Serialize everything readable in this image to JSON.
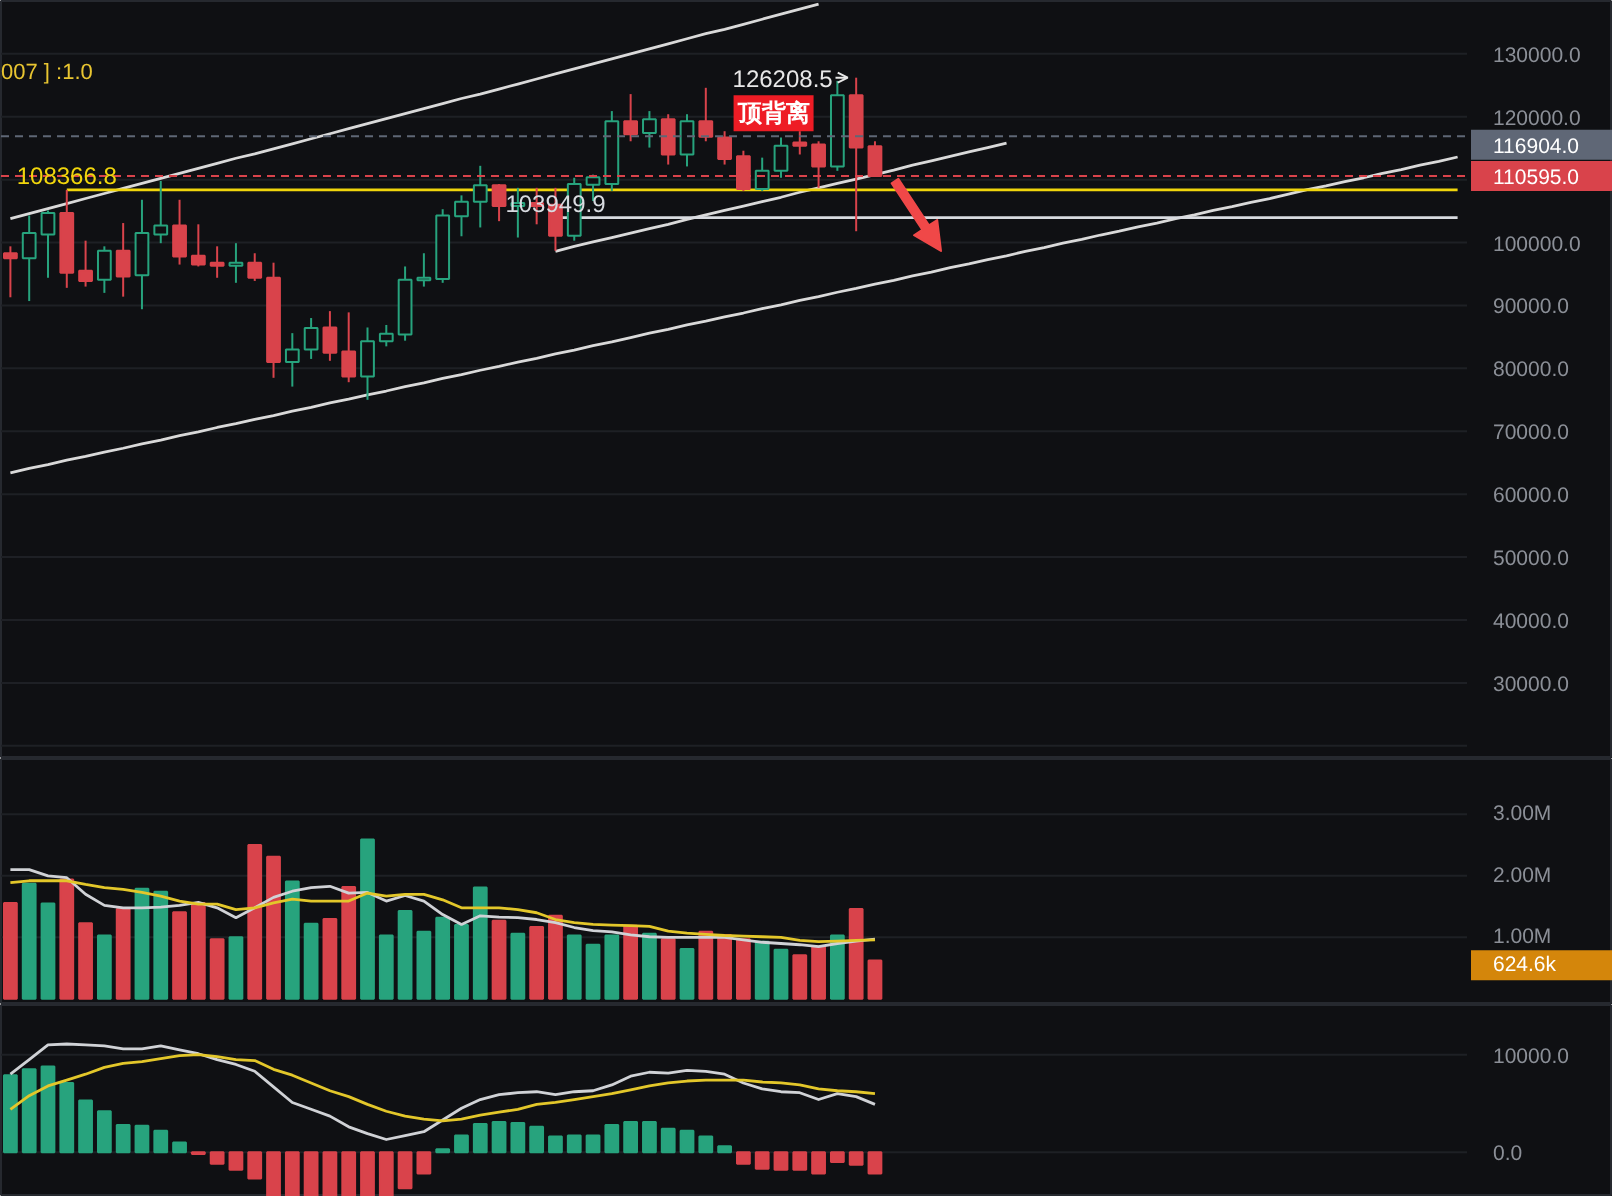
{
  "chart_data": [
    {
      "type": "candlestick",
      "categories": [
        null,
        null,
        null,
        null,
        null,
        null,
        null,
        null,
        null,
        null,
        null,
        null,
        null,
        null,
        null,
        null,
        null,
        null,
        null,
        null,
        null,
        null,
        null,
        null,
        null,
        null,
        null,
        null,
        null,
        null,
        null,
        null,
        null,
        null,
        null,
        null,
        null,
        null,
        null,
        null,
        null,
        null,
        null,
        null,
        null,
        null,
        null,
        null,
        null,
        null,
        null,
        null,
        null,
        null,
        null,
        null,
        null,
        null,
        null,
        null,
        null,
        null,
        null,
        null,
        null,
        null,
        null,
        null,
        null,
        null,
        null,
        null,
        null,
        null,
        null,
        null,
        null,
        null
      ],
      "ohlc": [
        [
          98300,
          99400,
          91300,
          97500
        ],
        [
          97500,
          104300,
          90700,
          101500
        ],
        [
          101300,
          105100,
          94400,
          104700
        ],
        [
          104700,
          108366.8,
          92800,
          95200
        ],
        [
          95500,
          100300,
          93000,
          93900
        ],
        [
          94100,
          99400,
          92000,
          98700
        ],
        [
          98700,
          103100,
          91400,
          94600
        ],
        [
          94800,
          106800,
          89400,
          101500
        ],
        [
          101300,
          109800,
          99900,
          102700
        ],
        [
          102700,
          106800,
          96500,
          97800
        ],
        [
          97900,
          102900,
          96200,
          96500
        ],
        [
          96800,
          99400,
          94400,
          96300
        ],
        [
          96300,
          99900,
          93600,
          96800
        ],
        [
          96800,
          98300,
          93900,
          94400
        ],
        [
          94400,
          96800,
          78500,
          81000
        ],
        [
          81000,
          85600,
          77100,
          83000
        ],
        [
          83000,
          88000,
          81500,
          86400
        ],
        [
          86500,
          89100,
          81200,
          82500
        ],
        [
          82700,
          88900,
          77800,
          78700
        ],
        [
          78700,
          86500,
          75000,
          84300
        ],
        [
          84300,
          86900,
          83500,
          85500
        ],
        [
          85400,
          96200,
          84400,
          94100
        ],
        [
          94000,
          98300,
          93000,
          94400
        ],
        [
          94200,
          105300,
          93600,
          104300
        ],
        [
          104200,
          107500,
          101000,
          106500
        ],
        [
          106500,
          112200,
          102400,
          109100
        ],
        [
          109100,
          109300,
          103400,
          105800
        ],
        [
          105800,
          108700,
          100800,
          106300
        ],
        [
          106300,
          108700,
          102900,
          105800
        ],
        [
          106000,
          108700,
          98700,
          101100
        ],
        [
          101100,
          110300,
          100300,
          109300
        ],
        [
          109200,
          110800,
          106600,
          110400
        ],
        [
          109300,
          120900,
          108200,
          119300
        ],
        [
          119300,
          123600,
          116100,
          117200
        ],
        [
          117400,
          120900,
          115100,
          119600
        ],
        [
          119600,
          120400,
          112400,
          114000
        ],
        [
          114000,
          120400,
          112100,
          119300
        ],
        [
          119300,
          124600,
          116100,
          116800
        ],
        [
          116700,
          117700,
          112400,
          113300
        ],
        [
          113700,
          114600,
          108200,
          108500
        ],
        [
          108500,
          113500,
          108200,
          111400
        ],
        [
          111400,
          116700,
          110300,
          115400
        ],
        [
          115900,
          117700,
          114000,
          115400
        ],
        [
          115600,
          116100,
          108700,
          112100
        ],
        [
          112100,
          125700,
          111400,
          123400
        ],
        [
          123400,
          126208.5,
          101800,
          115100
        ],
        [
          115300,
          116100,
          110500,
          110595
        ],
        null,
        null,
        null,
        null,
        null,
        null,
        null,
        null,
        null,
        null,
        null,
        null,
        null,
        null,
        null,
        null,
        null,
        null,
        null,
        null,
        null,
        null,
        null,
        null,
        null,
        null,
        null,
        null,
        null,
        null,
        null
      ],
      "colors": [
        "#d9434b",
        "#27a37d",
        "#27a37d",
        "#d9434b",
        "#d9434b",
        "#27a37d",
        "#d9434b",
        "#27a37d",
        "#27a37d",
        "#d9434b",
        "#d9434b",
        "#d9434b",
        "#27a37d",
        "#d9434b",
        "#d9434b",
        "#27a37d",
        "#27a37d",
        "#d9434b",
        "#d9434b",
        "#27a37d",
        "#27a37d",
        "#27a37d",
        "#27a37d",
        "#27a37d",
        "#27a37d",
        "#27a37d",
        "#d9434b",
        "#27a37d",
        "#d9434b",
        "#d9434b",
        "#27a37d",
        "#27a37d",
        "#27a37d",
        "#d9434b",
        "#27a37d",
        "#d9434b",
        "#27a37d",
        "#d9434b",
        "#d9434b",
        "#d9434b",
        "#27a37d",
        "#27a37d",
        "#d9434b",
        "#d9434b",
        "#27a37d",
        "#d9434b",
        "#d9434b",
        null,
        null,
        null,
        null,
        null,
        null,
        null,
        null,
        null,
        null,
        null,
        null,
        null,
        null,
        null,
        null,
        null,
        null,
        null,
        null,
        null,
        null,
        null,
        null,
        null,
        null,
        null,
        null,
        null,
        null,
        null
      ],
      "value_labels": [
        null,
        null,
        null,
        null,
        null,
        null,
        null,
        null,
        null,
        null,
        null,
        null,
        null,
        null,
        null,
        null,
        null,
        null,
        null,
        null,
        null,
        null,
        null,
        null,
        null,
        null,
        null,
        null,
        null,
        null,
        null,
        null,
        null,
        null,
        null,
        null,
        null,
        null,
        null,
        null,
        null,
        null,
        null,
        null,
        null,
        "126208.5",
        null,
        null,
        null,
        null,
        null,
        null,
        null,
        null,
        null,
        null,
        null,
        null,
        null,
        null,
        null,
        null,
        null,
        null,
        null,
        null,
        null,
        null,
        null,
        null,
        null,
        null,
        null,
        null,
        null,
        null,
        null,
        null
      ],
      "series": [
        {
          "type": "line",
          "color": "#d9d9d9",
          "values": [
            103800,
            104600,
            105400,
            106200,
            107000,
            107800,
            108600,
            109400,
            110200,
            111000,
            111800,
            112600,
            113400,
            114100,
            114900,
            115700,
            116500,
            117300,
            118100,
            118900,
            119700,
            120500,
            121300,
            122100,
            122900,
            123600,
            124400,
            125200,
            126000,
            126800,
            127600,
            128400,
            129200,
            130000,
            130800,
            131600,
            132400,
            133200,
            133900,
            134700,
            135500,
            136300,
            137100,
            137900,
            null,
            null,
            null,
            null,
            null,
            null,
            null,
            null,
            null,
            null,
            null,
            null,
            null,
            null,
            null,
            null,
            null,
            null,
            null,
            null,
            null,
            null,
            null,
            null,
            null,
            null,
            null,
            null,
            null,
            null,
            null,
            null,
            null,
            null
          ]
        },
        {
          "type": "line",
          "color": "#d9d9d9",
          "values": [
            63400,
            64100,
            64700,
            65400,
            66000,
            66700,
            67300,
            68000,
            68600,
            69300,
            69900,
            70600,
            71200,
            71900,
            72500,
            73200,
            73800,
            74500,
            75100,
            75800,
            76400,
            77100,
            77700,
            78400,
            79000,
            79700,
            80300,
            81000,
            81600,
            82300,
            82900,
            83600,
            84200,
            84900,
            85600,
            86200,
            86900,
            87500,
            88200,
            88800,
            89500,
            90100,
            90800,
            91400,
            92100,
            92700,
            93400,
            94000,
            94700,
            95300,
            96000,
            96600,
            97300,
            97900,
            98600,
            99200,
            99900,
            100500,
            101200,
            101800,
            102500,
            103100,
            103800,
            104400,
            105100,
            105700,
            106400,
            107000,
            107700,
            108400,
            109000,
            109700,
            110300,
            111000,
            111600,
            112300,
            112900,
            113600
          ]
        },
        {
          "type": "line",
          "color": "#d9d9d9",
          "values": [
            null,
            null,
            null,
            null,
            null,
            null,
            null,
            null,
            null,
            null,
            null,
            null,
            null,
            null,
            null,
            null,
            null,
            null,
            null,
            null,
            null,
            null,
            null,
            null,
            null,
            null,
            null,
            null,
            null,
            98600,
            99400,
            100100,
            100800,
            101500,
            102200,
            102900,
            103700,
            104400,
            105100,
            105800,
            106500,
            107200,
            108000,
            108700,
            109400,
            110100,
            110800,
            111500,
            112300,
            113000,
            113700,
            114400,
            115100,
            115800,
            null,
            null,
            null,
            null,
            null,
            null,
            null,
            null,
            null,
            null,
            null,
            null,
            null,
            null,
            null,
            null,
            null,
            null,
            null,
            null,
            null,
            null,
            null,
            null
          ]
        },
        {
          "type": "line",
          "color": "#f0d50c",
          "values": [
            null,
            null,
            null,
            108366.8,
            108366.8,
            108366.8,
            108366.8,
            108366.8,
            108366.8,
            108366.8,
            108366.8,
            108366.8,
            108366.8,
            108366.8,
            108366.8,
            108366.8,
            108366.8,
            108366.8,
            108366.8,
            108366.8,
            108366.8,
            108366.8,
            108366.8,
            108366.8,
            108366.8,
            108366.8,
            108366.8,
            108366.8,
            108366.8,
            108366.8,
            108366.8,
            108366.8,
            108366.8,
            108366.8,
            108366.8,
            108366.8,
            108366.8,
            108366.8,
            108366.8,
            108366.8,
            108366.8,
            108366.8,
            108366.8,
            108366.8,
            108366.8,
            108366.8,
            108366.8,
            108366.8,
            108366.8,
            108366.8,
            108366.8,
            108366.8,
            108366.8,
            108366.8,
            108366.8,
            108366.8,
            108366.8,
            108366.8,
            108366.8,
            108366.8,
            108366.8,
            108366.8,
            108366.8,
            108366.8,
            108366.8,
            108366.8,
            108366.8,
            108366.8,
            108366.8,
            108366.8,
            108366.8,
            108366.8,
            108366.8,
            108366.8,
            108366.8,
            108366.8,
            108366.8,
            108366.8
          ],
          "value_labels": [
            null,
            null,
            null,
            "108366.8",
            null,
            null,
            null,
            null,
            null,
            null,
            null,
            null,
            null,
            null,
            null,
            null,
            null,
            null,
            null,
            null,
            null,
            null,
            null,
            null,
            null,
            null,
            null,
            null,
            null,
            null,
            null,
            null,
            null,
            null,
            null,
            null,
            null,
            null,
            null,
            null,
            null,
            null,
            null,
            null,
            null,
            null,
            null,
            null,
            null,
            null,
            null,
            null,
            null,
            null,
            null,
            null,
            null,
            null,
            null,
            null,
            null,
            null,
            null,
            null,
            null,
            null,
            null,
            null,
            null,
            null,
            null,
            null,
            null,
            null,
            null,
            null,
            null,
            null
          ]
        },
        {
          "type": "line",
          "color": "#d8dbe0",
          "values": [
            null,
            null,
            null,
            null,
            null,
            null,
            null,
            null,
            null,
            null,
            null,
            null,
            null,
            null,
            null,
            null,
            null,
            null,
            null,
            null,
            null,
            null,
            null,
            null,
            null,
            null,
            null,
            null,
            null,
            103949.9,
            103949.9,
            103949.9,
            103949.9,
            103949.9,
            103949.9,
            103949.9,
            103949.9,
            103949.9,
            103949.9,
            103949.9,
            103949.9,
            103949.9,
            103949.9,
            103949.9,
            103949.9,
            103949.9,
            103949.9,
            103949.9,
            103949.9,
            103949.9,
            103949.9,
            103949.9,
            103949.9,
            103949.9,
            103949.9,
            103949.9,
            103949.9,
            103949.9,
            103949.9,
            103949.9,
            103949.9,
            103949.9,
            103949.9,
            103949.9,
            103949.9,
            103949.9,
            103949.9,
            103949.9,
            103949.9,
            103949.9,
            103949.9,
            103949.9,
            103949.9,
            103949.9,
            103949.9,
            103949.9,
            103949.9,
            103949.9
          ],
          "value_labels": [
            null,
            null,
            null,
            null,
            null,
            null,
            null,
            null,
            null,
            null,
            null,
            null,
            null,
            null,
            null,
            null,
            null,
            null,
            null,
            null,
            null,
            null,
            null,
            null,
            null,
            null,
            null,
            null,
            null,
            "103949.9",
            null,
            null,
            null,
            null,
            null,
            null,
            null,
            null,
            null,
            null,
            null,
            null,
            null,
            null,
            null,
            null,
            null,
            null,
            null,
            null,
            null,
            null,
            null,
            null,
            null,
            null,
            null,
            null,
            null,
            null,
            null,
            null,
            null,
            null,
            null,
            null,
            null,
            null,
            null,
            null,
            null,
            null,
            null,
            null,
            null,
            null,
            null,
            null
          ]
        }
      ],
      "ref_lines": [
        {
          "axis": "y",
          "value": 116904,
          "label": "116904.0",
          "color": "#5f6776",
          "line_style": "dashed"
        },
        {
          "axis": "y",
          "value": 110595,
          "label": "110595.0",
          "color": "#d9434b",
          "line_style": "dashed"
        }
      ],
      "annotations": [
        "007 ] :1.0",
        "顶背离"
      ],
      "ylim": [
        17900,
        138400
      ],
      "yticks": [
        {
          "value": 20000,
          "label": null
        },
        {
          "value": 30000,
          "label": "30000.0"
        },
        {
          "value": 40000,
          "label": "40000.0"
        },
        {
          "value": 50000,
          "label": "50000.0"
        },
        {
          "value": 60000,
          "label": "60000.0"
        },
        {
          "value": 70000,
          "label": "70000.0"
        },
        {
          "value": 80000,
          "label": "80000.0"
        },
        {
          "value": 90000,
          "label": "90000.0"
        },
        {
          "value": 100000,
          "label": "100000.0"
        },
        {
          "value": 110000,
          "label": null
        },
        {
          "value": 120000,
          "label": "120000.0"
        },
        {
          "value": 130000,
          "label": "130000.0"
        }
      ],
      "grid": "y",
      "tick_labels": "y"
    },
    {
      "type": "bar",
      "categories": [
        null,
        null,
        null,
        null,
        null,
        null,
        null,
        null,
        null,
        null,
        null,
        null,
        null,
        null,
        null,
        null,
        null,
        null,
        null,
        null,
        null,
        null,
        null,
        null,
        null,
        null,
        null,
        null,
        null,
        null,
        null,
        null,
        null,
        null,
        null,
        null,
        null,
        null,
        null,
        null,
        null,
        null,
        null,
        null,
        null,
        null,
        null,
        null,
        null,
        null,
        null,
        null,
        null,
        null,
        null,
        null,
        null,
        null,
        null,
        null,
        null,
        null,
        null,
        null,
        null,
        null,
        null,
        null,
        null,
        null,
        null,
        null,
        null,
        null,
        null,
        null,
        null,
        null
      ],
      "series": [
        {
          "type": "bar",
          "values": [
            1560000,
            1870000,
            1550000,
            1940000,
            1230000,
            1030000,
            1460000,
            1790000,
            1740000,
            1410000,
            1560000,
            970000,
            1000000,
            2500000,
            2310000,
            1910000,
            1220000,
            1300000,
            1820000,
            2590000,
            1030000,
            1430000,
            1090000,
            1320000,
            1200000,
            1810000,
            1270000,
            1060000,
            1170000,
            1350000,
            1030000,
            880000,
            1030000,
            1190000,
            1060000,
            970000,
            810000,
            1090000,
            1040000,
            970000,
            930000,
            800000,
            710000,
            850000,
            1030000,
            1460000,
            624600,
            null,
            null,
            null,
            null,
            null,
            null,
            null,
            null,
            null,
            null,
            null,
            null,
            null,
            null,
            null,
            null,
            null,
            null,
            null,
            null,
            null,
            null,
            null,
            null,
            null,
            null,
            null,
            null,
            null,
            null,
            null
          ],
          "colors": [
            "#d9434b",
            "#27a37d",
            "#27a37d",
            "#d9434b",
            "#d9434b",
            "#27a37d",
            "#d9434b",
            "#27a37d",
            "#27a37d",
            "#d9434b",
            "#d9434b",
            "#d9434b",
            "#27a37d",
            "#d9434b",
            "#d9434b",
            "#27a37d",
            "#27a37d",
            "#d9434b",
            "#d9434b",
            "#27a37d",
            "#27a37d",
            "#27a37d",
            "#27a37d",
            "#27a37d",
            "#27a37d",
            "#27a37d",
            "#d9434b",
            "#27a37d",
            "#d9434b",
            "#d9434b",
            "#27a37d",
            "#27a37d",
            "#27a37d",
            "#d9434b",
            "#27a37d",
            "#d9434b",
            "#27a37d",
            "#d9434b",
            "#d9434b",
            "#d9434b",
            "#27a37d",
            "#27a37d",
            "#d9434b",
            "#d9434b",
            "#27a37d",
            "#d9434b",
            "#d9434b",
            null,
            null,
            null,
            null,
            null,
            null,
            null,
            null,
            null,
            null,
            null,
            null,
            null,
            null,
            null,
            null,
            null,
            null,
            null,
            null,
            null,
            null,
            null,
            null,
            null,
            null,
            null,
            null,
            null,
            null,
            null
          ]
        },
        {
          "type": "line",
          "color": "#d0d2d6",
          "values": [
            2100000,
            2100000,
            2000000,
            1970000,
            1700000,
            1520000,
            1480000,
            1480000,
            1490000,
            1520000,
            1570000,
            1480000,
            1320000,
            1480000,
            1650000,
            1750000,
            1810000,
            1830000,
            1720000,
            1730000,
            1590000,
            1680000,
            1590000,
            1370000,
            1210000,
            1350000,
            1330000,
            1320000,
            1290000,
            1240000,
            1160000,
            1110000,
            1090000,
            1040000,
            1010000,
            1000000,
            1000000,
            1000000,
            1000000,
            960000,
            920000,
            900000,
            880000,
            850000,
            900000,
            940000,
            970000,
            null,
            null,
            null,
            null,
            null,
            null,
            null,
            null,
            null,
            null,
            null,
            null,
            null,
            null,
            null,
            null,
            null,
            null,
            null,
            null,
            null,
            null,
            null,
            null,
            null,
            null,
            null,
            null,
            null,
            null,
            null
          ]
        },
        {
          "type": "line",
          "color": "#e3c72a",
          "values": [
            1890000,
            1920000,
            1920000,
            1920000,
            1860000,
            1810000,
            1780000,
            1730000,
            1670000,
            1590000,
            1540000,
            1540000,
            1450000,
            1480000,
            1560000,
            1620000,
            1590000,
            1590000,
            1590000,
            1720000,
            1670000,
            1700000,
            1700000,
            1610000,
            1480000,
            1480000,
            1480000,
            1450000,
            1400000,
            1290000,
            1240000,
            1210000,
            1200000,
            1190000,
            1180000,
            1100000,
            1070000,
            1050000,
            1030000,
            1020000,
            1010000,
            1000000,
            950000,
            930000,
            940000,
            950000,
            960000,
            null,
            null,
            null,
            null,
            null,
            null,
            null,
            null,
            null,
            null,
            null,
            null,
            null,
            null,
            null,
            null,
            null,
            null,
            null,
            null,
            null,
            null,
            null,
            null,
            null,
            null,
            null,
            null,
            null,
            null,
            null
          ]
        }
      ],
      "annotations": [
        "624.6k"
      ],
      "ylim": [
        -100000,
        3900000
      ],
      "yticks": [
        {
          "value": 1000000,
          "label": "1.00M"
        },
        {
          "value": 2000000,
          "label": "2.00M"
        },
        {
          "value": 3000000,
          "label": "3.00M"
        }
      ],
      "grid": "y",
      "tick_labels": "y"
    },
    {
      "type": "bar",
      "categories": [
        null,
        null,
        null,
        null,
        null,
        null,
        null,
        null,
        null,
        null,
        null,
        null,
        null,
        null,
        null,
        null,
        null,
        null,
        null,
        null,
        null,
        null,
        null,
        null,
        null,
        null,
        null,
        null,
        null,
        null,
        null,
        null,
        null,
        null,
        null,
        null,
        null,
        null,
        null,
        null,
        null,
        null,
        null,
        null,
        null,
        null,
        null,
        null,
        null,
        null,
        null,
        null,
        null,
        null,
        null,
        null,
        null,
        null,
        null,
        null,
        null,
        null,
        null,
        null,
        null,
        null,
        null,
        null,
        null,
        null,
        null,
        null,
        null,
        null,
        null,
        null,
        null,
        null
      ],
      "series": [
        {
          "type": "bar",
          "values": [
            7900,
            8500,
            8800,
            7100,
            5300,
            4200,
            2800,
            2700,
            2200,
            1000,
            -200,
            -1200,
            -1800,
            -2700,
            -4500,
            -4500,
            -4500,
            -4500,
            -4500,
            -4500,
            -4500,
            -3700,
            -2200,
            300,
            1700,
            2900,
            3100,
            3000,
            2600,
            1600,
            1700,
            1700,
            2800,
            3100,
            3100,
            2400,
            2200,
            1600,
            600,
            -1200,
            -1700,
            -1800,
            -1800,
            -2200,
            -1000,
            -1300,
            -2200,
            null,
            null,
            null,
            null,
            null,
            null,
            null,
            null,
            null,
            null,
            null,
            null,
            null,
            null,
            null,
            null,
            null,
            null,
            null,
            null,
            null,
            null,
            null,
            null,
            null,
            null,
            null,
            null,
            null,
            null,
            null
          ],
          "colors": [
            "#27a37d",
            "#27a37d",
            "#27a37d",
            "#27a37d",
            "#27a37d",
            "#27a37d",
            "#27a37d",
            "#27a37d",
            "#27a37d",
            "#27a37d",
            "#d9434b",
            "#d9434b",
            "#d9434b",
            "#d9434b",
            "#d9434b",
            "#d9434b",
            "#d9434b",
            "#d9434b",
            "#d9434b",
            "#d9434b",
            "#d9434b",
            "#d9434b",
            "#d9434b",
            "#27a37d",
            "#27a37d",
            "#27a37d",
            "#27a37d",
            "#27a37d",
            "#27a37d",
            "#27a37d",
            "#27a37d",
            "#27a37d",
            "#27a37d",
            "#27a37d",
            "#27a37d",
            "#27a37d",
            "#27a37d",
            "#27a37d",
            "#27a37d",
            "#d9434b",
            "#d9434b",
            "#d9434b",
            "#d9434b",
            "#d9434b",
            "#d9434b",
            "#d9434b",
            "#d9434b",
            null,
            null,
            null,
            null,
            null,
            null,
            null,
            null,
            null,
            null,
            null,
            null,
            null,
            null,
            null,
            null,
            null,
            null,
            null,
            null,
            null,
            null,
            null,
            null,
            null,
            null,
            null,
            null,
            null,
            null,
            null
          ]
        },
        {
          "type": "line",
          "color": "#d0d2d6",
          "values": [
            8000,
            9500,
            11000,
            11100,
            11000,
            10900,
            10600,
            10600,
            10900,
            10500,
            10100,
            9500,
            9000,
            8300,
            6700,
            5100,
            4400,
            3700,
            2600,
            1900,
            1300,
            1700,
            2100,
            3300,
            4500,
            5400,
            5900,
            6100,
            6200,
            5900,
            6200,
            6300,
            6900,
            7800,
            8200,
            8100,
            8400,
            8300,
            8000,
            7100,
            6500,
            6200,
            6100,
            5400,
            6000,
            5700,
            4900,
            null,
            null,
            null,
            null,
            null,
            null,
            null,
            null,
            null,
            null,
            null,
            null,
            null,
            null,
            null,
            null,
            null,
            null,
            null,
            null,
            null,
            null,
            null,
            null,
            null,
            null,
            null,
            null,
            null,
            null,
            null
          ]
        },
        {
          "type": "line",
          "color": "#e3c72a",
          "values": [
            4400,
            5800,
            6800,
            7400,
            8000,
            8700,
            9100,
            9300,
            9600,
            9900,
            10000,
            9800,
            9500,
            9400,
            8500,
            7900,
            7100,
            6300,
            5700,
            4900,
            4200,
            3700,
            3400,
            3200,
            3400,
            3800,
            4100,
            4400,
            4900,
            5100,
            5400,
            5700,
            6000,
            6400,
            6800,
            7100,
            7300,
            7400,
            7400,
            7400,
            7200,
            7100,
            6900,
            6500,
            6300,
            6200,
            6000,
            null,
            null,
            null,
            null,
            null,
            null,
            null,
            null,
            null,
            null,
            null,
            null,
            null,
            null,
            null,
            null,
            null,
            null,
            null,
            null,
            null,
            null,
            null,
            null,
            null,
            null,
            null,
            null,
            null,
            null,
            null
          ]
        }
      ],
      "ylim": [
        -4600,
        15100
      ],
      "yticks": [
        {
          "value": 0,
          "label": "0.0"
        },
        {
          "value": 10000,
          "label": "10000.0"
        }
      ],
      "grid": "y",
      "tick_labels": "y"
    }
  ]
}
